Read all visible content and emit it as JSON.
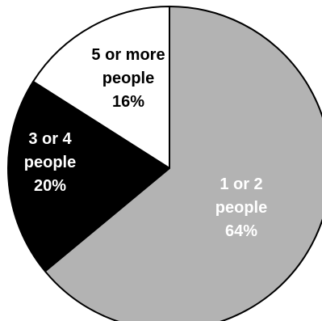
{
  "chart_data": {
    "type": "pie",
    "start_angle_deg": 0,
    "direction": "clockwise",
    "slices": [
      {
        "label_lines": [
          "1 or 2",
          "people",
          "64%"
        ],
        "category": "1 or 2 people",
        "value": 64,
        "color": "#b3b3b3",
        "text_color": "#ffffff"
      },
      {
        "label_lines": [
          "3 or 4",
          "people",
          "20%"
        ],
        "category": "3 or 4 people",
        "value": 20,
        "color": "#000000",
        "text_color": "#ffffff"
      },
      {
        "label_lines": [
          "5 or more",
          "people",
          "16%"
        ],
        "category": "5 or more people",
        "value": 16,
        "color": "#ffffff",
        "text_color": "#000000"
      }
    ],
    "stroke_color": "#000000"
  }
}
